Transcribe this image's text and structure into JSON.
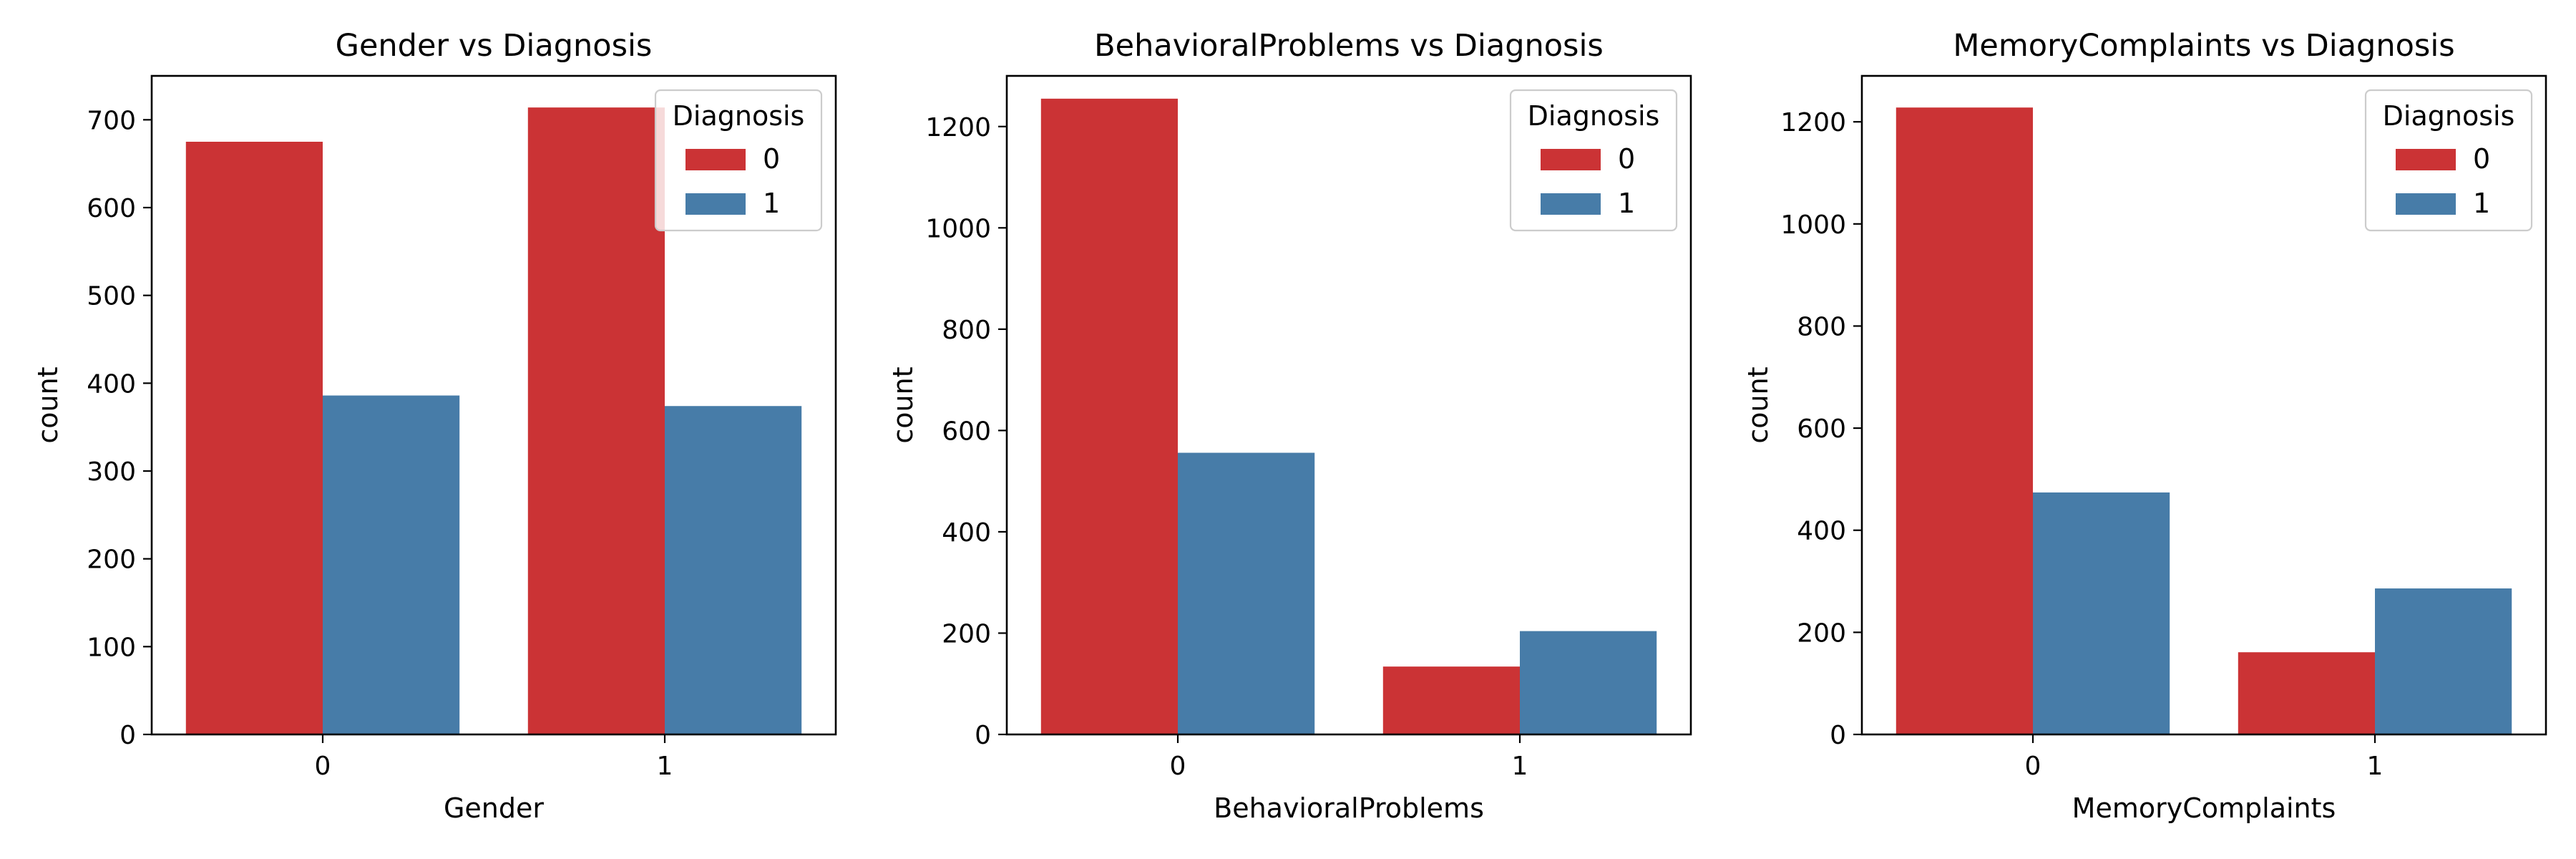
{
  "colors": {
    "series_0": "#CB3335",
    "series_1": "#477CA8"
  },
  "chart_data": [
    {
      "type": "bar",
      "title": "Gender vs Diagnosis",
      "xlabel": "Gender",
      "ylabel": "count",
      "categories": [
        "0",
        "1"
      ],
      "series": [
        {
          "name": "0",
          "values": [
            675,
            714
          ]
        },
        {
          "name": "1",
          "values": [
            386,
            374
          ]
        }
      ],
      "ylim": [
        0,
        750
      ],
      "yticks": [
        0,
        100,
        200,
        300,
        400,
        500,
        600,
        700
      ],
      "legend": {
        "title": "Diagnosis",
        "position": "top-right"
      },
      "grid": false
    },
    {
      "type": "bar",
      "title": "BehavioralProblems vs Diagnosis",
      "xlabel": "BehavioralProblems",
      "ylabel": "count",
      "categories": [
        "0",
        "1"
      ],
      "series": [
        {
          "name": "0",
          "values": [
            1255,
            134
          ]
        },
        {
          "name": "1",
          "values": [
            556,
            204
          ]
        }
      ],
      "ylim": [
        0,
        1300
      ],
      "yticks": [
        0,
        200,
        400,
        600,
        800,
        1000,
        1200
      ],
      "legend": {
        "title": "Diagnosis",
        "position": "top-right"
      },
      "grid": false
    },
    {
      "type": "bar",
      "title": "MemoryComplaints vs Diagnosis",
      "xlabel": "MemoryComplaints",
      "ylabel": "count",
      "categories": [
        "0",
        "1"
      ],
      "series": [
        {
          "name": "0",
          "values": [
            1228,
            161
          ]
        },
        {
          "name": "1",
          "values": [
            474,
            286
          ]
        }
      ],
      "ylim": [
        0,
        1290
      ],
      "yticks": [
        0,
        200,
        400,
        600,
        800,
        1000,
        1200
      ],
      "legend": {
        "title": "Diagnosis",
        "position": "top-right"
      },
      "grid": false
    }
  ]
}
